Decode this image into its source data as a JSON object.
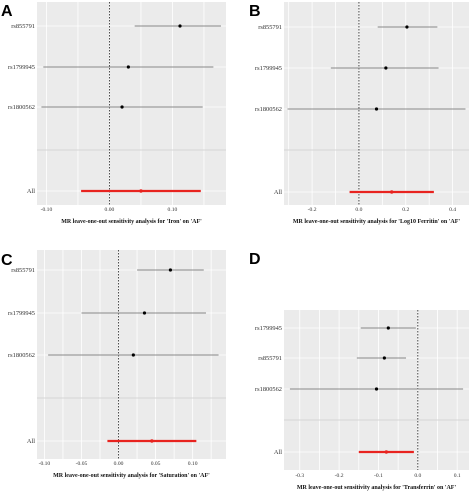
{
  "chart_data": [
    {
      "type": "forest",
      "panel": "A",
      "title": "MR leave-one-out sensitivity analysis for 'Iron' on 'AF'",
      "xlim": [
        -0.115,
        0.185
      ],
      "xticks": [
        -0.1,
        0.0,
        0.1
      ],
      "xtick_labels": [
        "-0.10",
        "0.00",
        "0.10"
      ],
      "rows": [
        {
          "label": "rs855791",
          "estimate": 0.112,
          "low": 0.04,
          "high": 0.177
        },
        {
          "label": "rs1799945",
          "estimate": 0.03,
          "low": -0.105,
          "high": 0.165
        },
        {
          "label": "rs1800562",
          "estimate": 0.02,
          "low": -0.108,
          "high": 0.148
        }
      ],
      "overall": {
        "label": "All",
        "estimate": 0.05,
        "low": -0.045,
        "high": 0.145
      }
    },
    {
      "type": "forest",
      "panel": "B",
      "title": "MR leave-one-out sensitivity analysis for 'Log10 Ferritin' on 'AF'",
      "xlim": [
        -0.32,
        0.47
      ],
      "xticks": [
        -0.2,
        0.0,
        0.2,
        0.4
      ],
      "xtick_labels": [
        "-0.2",
        "0.0",
        "0.2",
        "0.4"
      ],
      "rows": [
        {
          "label": "rs855791",
          "estimate": 0.205,
          "low": 0.08,
          "high": 0.335
        },
        {
          "label": "rs1799945",
          "estimate": 0.115,
          "low": -0.12,
          "high": 0.34
        },
        {
          "label": "rs1800562",
          "estimate": 0.075,
          "low": -0.305,
          "high": 0.455
        }
      ],
      "overall": {
        "label": "All",
        "estimate": 0.14,
        "low": -0.04,
        "high": 0.32
      }
    },
    {
      "type": "forest",
      "panel": "C",
      "title": "MR leave-one-out sensitivity analysis for 'Saturation' on 'AF'",
      "xlim": [
        -0.11,
        0.145
      ],
      "xticks": [
        -0.1,
        -0.05,
        0.0,
        0.05,
        0.1
      ],
      "xtick_labels": [
        "-0.10",
        "-0.05",
        "0.00",
        "0.05",
        "0.10"
      ],
      "rows": [
        {
          "label": "rs855791",
          "estimate": 0.07,
          "low": 0.025,
          "high": 0.115
        },
        {
          "label": "rs1799945",
          "estimate": 0.035,
          "low": -0.05,
          "high": 0.118
        },
        {
          "label": "rs1800562",
          "estimate": 0.02,
          "low": -0.095,
          "high": 0.135
        }
      ],
      "overall": {
        "label": "All",
        "estimate": 0.045,
        "low": -0.015,
        "high": 0.105
      }
    },
    {
      "type": "forest",
      "panel": "D",
      "title": "MR leave-one-out sensitivity analysis for 'Transferrin' on 'AF'",
      "xlim": [
        -0.34,
        0.13
      ],
      "xticks": [
        -0.3,
        -0.2,
        -0.1,
        0.0,
        0.1
      ],
      "xtick_labels": [
        "-0.3",
        "-0.2",
        "-0.1",
        "0.0",
        "0.1"
      ],
      "rows": [
        {
          "label": "rs1799945",
          "estimate": -0.075,
          "low": -0.145,
          "high": -0.005
        },
        {
          "label": "rs855791",
          "estimate": -0.085,
          "low": -0.155,
          "high": -0.03
        },
        {
          "label": "rs1800562",
          "estimate": -0.105,
          "low": -0.325,
          "high": 0.115
        }
      ],
      "overall": {
        "label": "All",
        "estimate": -0.08,
        "low": -0.15,
        "high": -0.01
      }
    }
  ]
}
